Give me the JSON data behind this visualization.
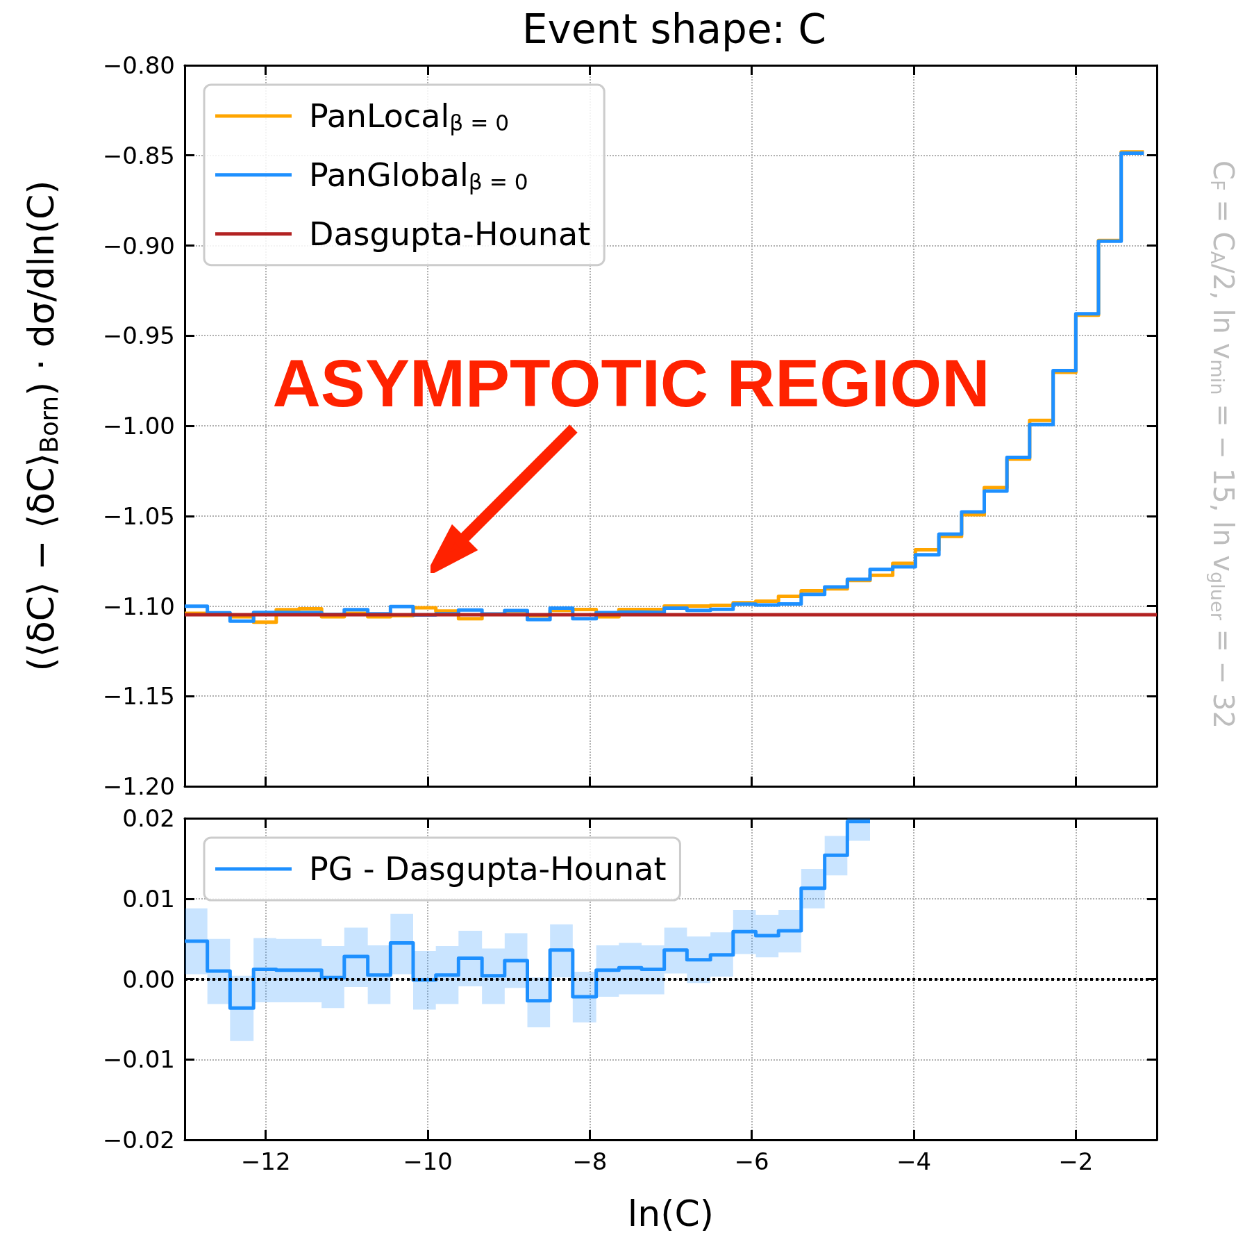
{
  "chart_data": [
    {
      "type": "step",
      "title": "Event shape: C",
      "ylabel": "(⟨δC⟩ − ⟨δC⟩$_{Born}$) · dσ/dln(C)",
      "xlim": [
        -13,
        -1
      ],
      "xticks": [
        {
          "value": -12,
          "label": null
        },
        {
          "value": -10,
          "label": null
        },
        {
          "value": -8,
          "label": null
        },
        {
          "value": -6,
          "label": null
        },
        {
          "value": -4,
          "label": null
        },
        {
          "value": -2,
          "label": null
        }
      ],
      "ylim": [
        -1.2,
        -0.8
      ],
      "yticks": [
        {
          "value": -1.2,
          "label": "−1.20"
        },
        {
          "value": -1.15,
          "label": "−1.15"
        },
        {
          "value": -1.1,
          "label": "−1.10"
        },
        {
          "value": -1.05,
          "label": "−1.05"
        },
        {
          "value": -1.0,
          "label": "−1.00"
        },
        {
          "value": -0.95,
          "label": "−0.95"
        },
        {
          "value": -0.9,
          "label": "−0.90"
        },
        {
          "value": -0.85,
          "label": "−0.85"
        },
        {
          "value": -0.8,
          "label": "−0.80"
        }
      ],
      "tick_labels": "y",
      "grid": true,
      "legend": "top left",
      "annotations": [
        "ASYMPTOTIC REGION",
        "C$_{F}$ = C$_{A}$/2, ln v$_{min}$ = − 15, ln v$_{gluer}$ = − 32"
      ],
      "x": [
        -13,
        -12.72,
        -12.44,
        -12.15,
        -11.87,
        -11.59,
        -11.31,
        -11.03,
        -10.74,
        -10.46,
        -10.18,
        -9.9,
        -9.62,
        -9.33,
        -9.05,
        -8.77,
        -8.49,
        -8.21,
        -7.92,
        -7.64,
        -7.36,
        -7.08,
        -6.8,
        -6.51,
        -6.23,
        -5.95,
        -5.67,
        -5.39,
        -5.1,
        -4.82,
        -4.54,
        -4.26,
        -3.98,
        -3.69,
        -3.41,
        -3.13,
        -2.85,
        -2.57,
        -2.28,
        -2,
        -1.72,
        -1.44,
        -1.16
      ],
      "series": [
        {
          "name": "PanLocal$_{β = 0}$",
          "color": "#ffa500",
          "values": [
            -1.104,
            -1.1045,
            -1.106,
            -1.109,
            -1.102,
            -1.1015,
            -1.106,
            -1.104,
            -1.106,
            -1.1053,
            -1.101,
            -1.1028,
            -1.107,
            -1.1045,
            -1.1028,
            -1.1053,
            -1.1024,
            -1.1019,
            -1.106,
            -1.1019,
            -1.1018,
            -1.1,
            -1.1,
            -1.0996,
            -1.0982,
            -1.0973,
            -1.0946,
            -1.0915,
            -1.0905,
            -1.0858,
            -1.0829,
            -1.0763,
            -1.0688,
            -1.0614,
            -1.0493,
            -1.0343,
            -1.0185,
            -0.997,
            -0.9703,
            -0.9386,
            -0.8972,
            -0.8481,
            -0.8481
          ]
        },
        {
          "name": "PanGlobal$_{β = 0}$",
          "color": "#1e90ff",
          "values": [
            -1.1001,
            -1.1038,
            -1.1084,
            -1.1036,
            -1.1037,
            -1.1037,
            -1.1046,
            -1.102,
            -1.1043,
            -1.1003,
            -1.1049,
            -1.1043,
            -1.1022,
            -1.1044,
            -1.1025,
            -1.1075,
            -1.1012,
            -1.107,
            -1.1037,
            -1.1034,
            -1.1036,
            -1.1012,
            -1.1024,
            -1.1018,
            -1.0989,
            -1.0994,
            -1.0988,
            -1.0935,
            -1.0894,
            -1.0852,
            -1.0797,
            -1.0782,
            -1.0716,
            -1.0601,
            -1.0478,
            -1.0362,
            -1.0175,
            -0.9993,
            -0.9694,
            -0.9379,
            -0.8976,
            -0.8487,
            -0.8487
          ]
        },
        {
          "name": "Dasgupta-Hounat",
          "type": "line",
          "color": "#b22222",
          "x": [
            -13,
            -1
          ],
          "values": [
            -1.1048,
            -1.1048
          ]
        }
      ]
    },
    {
      "type": "step",
      "xlabel": "ln(C)",
      "xlim": [
        -13,
        -1
      ],
      "xticks": [
        {
          "value": -12,
          "label": "−12"
        },
        {
          "value": -10,
          "label": "−10"
        },
        {
          "value": -8,
          "label": "−8"
        },
        {
          "value": -6,
          "label": "−6"
        },
        {
          "value": -4,
          "label": "−4"
        },
        {
          "value": -2,
          "label": "−2"
        }
      ],
      "ylim": [
        -0.02,
        0.02
      ],
      "yticks": [
        {
          "value": -0.02,
          "label": "−0.02"
        },
        {
          "value": -0.01,
          "label": "−0.01"
        },
        {
          "value": 0,
          "label": "0.00"
        },
        {
          "value": 0.01,
          "label": "0.01"
        },
        {
          "value": 0.02,
          "label": "0.02"
        }
      ],
      "grid": true,
      "legend": "top left",
      "ref_lines": [
        {
          "axis": "y",
          "value": 0,
          "color": "#000000",
          "line_style": "dotted"
        }
      ],
      "x": [
        -13,
        -12.72,
        -12.44,
        -12.15,
        -11.87,
        -11.59,
        -11.31,
        -11.03,
        -10.74,
        -10.46,
        -10.18,
        -9.9,
        -9.62,
        -9.33,
        -9.05,
        -8.77,
        -8.49,
        -8.21,
        -7.92,
        -7.64,
        -7.36,
        -7.08,
        -6.8,
        -6.51,
        -6.23,
        -5.95,
        -5.67,
        -5.39,
        -5.1,
        -4.82,
        -4.54
      ],
      "series": [
        {
          "name": "PG - Dasgupta-Hounat",
          "color": "#1e90ff",
          "values": [
            0.0047,
            0.001,
            -0.0036,
            0.0012,
            0.0011,
            0.0011,
            0.0002,
            0.0028,
            0.0005,
            0.0045,
            -0.0001,
            0.0005,
            0.0026,
            0.0004,
            0.0023,
            -0.0027,
            0.0036,
            -0.0022,
            0.0011,
            0.0014,
            0.0012,
            0.0036,
            0.0024,
            0.003,
            0.0059,
            0.0054,
            0.006,
            0.0113,
            0.0154,
            0.0196,
            0.0196
          ],
          "upper": [
            0.0088,
            0.005,
            0.0004,
            0.0051,
            0.005,
            0.005,
            0.0041,
            0.0064,
            0.0042,
            0.0081,
            0.0035,
            0.0041,
            0.006,
            0.0038,
            0.0057,
            0.0002,
            0.0068,
            0.0009,
            0.0042,
            0.0045,
            0.0042,
            0.0064,
            0.0053,
            0.0058,
            0.0086,
            0.008,
            0.0086,
            0.0137,
            0.0178,
            0.02,
            0.02
          ],
          "lower": [
            0.0006,
            -0.0031,
            -0.0077,
            -0.0029,
            -0.0029,
            -0.0029,
            -0.0036,
            -0.001,
            -0.0031,
            0.0006,
            -0.0038,
            -0.0031,
            -0.0009,
            -0.0031,
            -0.0011,
            -0.006,
            0.0002,
            -0.0054,
            -0.0022,
            -0.0019,
            -0.0019,
            0.0007,
            -0.0005,
            0.0003,
            0.0031,
            0.0027,
            0.0033,
            0.0088,
            0.0129,
            0.0172,
            0.0172
          ]
        }
      ]
    }
  ]
}
